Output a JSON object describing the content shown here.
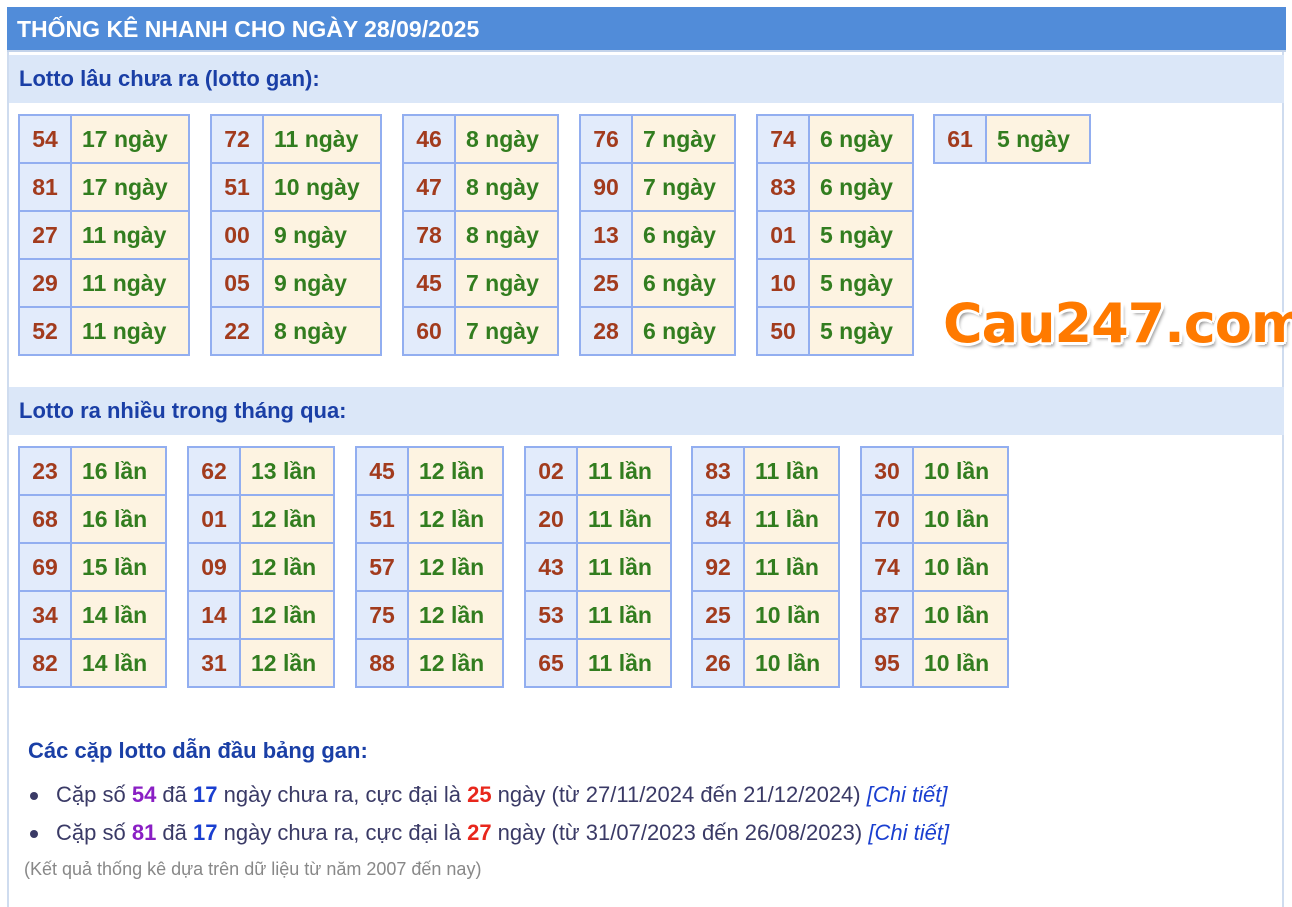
{
  "title": "THỐNG KÊ NHANH CHO NGÀY 28/09/2025",
  "gan": {
    "heading": "Lotto lâu chưa ra (lotto gan):",
    "tables": [
      [
        [
          "54",
          "17 ngày"
        ],
        [
          "81",
          "17 ngày"
        ],
        [
          "27",
          "11 ngày"
        ],
        [
          "29",
          "11 ngày"
        ],
        [
          "52",
          "11 ngày"
        ]
      ],
      [
        [
          "72",
          "11 ngày"
        ],
        [
          "51",
          "10 ngày"
        ],
        [
          "00",
          "9 ngày"
        ],
        [
          "05",
          "9 ngày"
        ],
        [
          "22",
          "8 ngày"
        ]
      ],
      [
        [
          "46",
          "8 ngày"
        ],
        [
          "47",
          "8 ngày"
        ],
        [
          "78",
          "8 ngày"
        ],
        [
          "45",
          "7 ngày"
        ],
        [
          "60",
          "7 ngày"
        ]
      ],
      [
        [
          "76",
          "7 ngày"
        ],
        [
          "90",
          "7 ngày"
        ],
        [
          "13",
          "6 ngày"
        ],
        [
          "25",
          "6 ngày"
        ],
        [
          "28",
          "6 ngày"
        ]
      ],
      [
        [
          "74",
          "6 ngày"
        ],
        [
          "83",
          "6 ngày"
        ],
        [
          "01",
          "5 ngày"
        ],
        [
          "10",
          "5 ngày"
        ],
        [
          "50",
          "5 ngày"
        ]
      ],
      [
        [
          "61",
          "5 ngày"
        ]
      ]
    ]
  },
  "logo": "Cau247.com",
  "frequent": {
    "heading": "Lotto ra nhiều trong tháng qua:",
    "tables": [
      [
        [
          "23",
          "16 lần"
        ],
        [
          "68",
          "16 lần"
        ],
        [
          "69",
          "15 lần"
        ],
        [
          "34",
          "14 lần"
        ],
        [
          "82",
          "14 lần"
        ]
      ],
      [
        [
          "62",
          "13 lần"
        ],
        [
          "01",
          "12 lần"
        ],
        [
          "09",
          "12 lần"
        ],
        [
          "14",
          "12 lần"
        ],
        [
          "31",
          "12 lần"
        ]
      ],
      [
        [
          "45",
          "12 lần"
        ],
        [
          "51",
          "12 lần"
        ],
        [
          "57",
          "12 lần"
        ],
        [
          "75",
          "12 lần"
        ],
        [
          "88",
          "12 lần"
        ]
      ],
      [
        [
          "02",
          "11 lần"
        ],
        [
          "20",
          "11 lần"
        ],
        [
          "43",
          "11 lần"
        ],
        [
          "53",
          "11 lần"
        ],
        [
          "65",
          "11 lần"
        ]
      ],
      [
        [
          "83",
          "11 lần"
        ],
        [
          "84",
          "11 lần"
        ],
        [
          "92",
          "11 lần"
        ],
        [
          "25",
          "10 lần"
        ],
        [
          "26",
          "10 lần"
        ]
      ],
      [
        [
          "30",
          "10 lần"
        ],
        [
          "70",
          "10 lần"
        ],
        [
          "74",
          "10 lần"
        ],
        [
          "87",
          "10 lần"
        ],
        [
          "95",
          "10 lần"
        ]
      ]
    ]
  },
  "leaders": {
    "heading": "Các cặp lotto dẫn đầu bảng gan:",
    "items": [
      {
        "p1": "Cặp số ",
        "num": "54",
        "p2": " đã ",
        "days": "17",
        "p3": " ngày chưa ra, cực đại là ",
        "max": "25",
        "p4": " ngày (từ 27/11/2024 đến 21/12/2024) ",
        "link": "[Chi tiết]"
      },
      {
        "p1": "Cặp số ",
        "num": "81",
        "p2": " đã ",
        "days": "17",
        "p3": " ngày chưa ra, cực đại là ",
        "max": "27",
        "p4": " ngày (từ 31/07/2023 đến 26/08/2023) ",
        "link": "[Chi tiết]"
      }
    ],
    "note": "(Kết quả thống kê dựa trên dữ liệu từ năm 2007 đến nay)"
  }
}
